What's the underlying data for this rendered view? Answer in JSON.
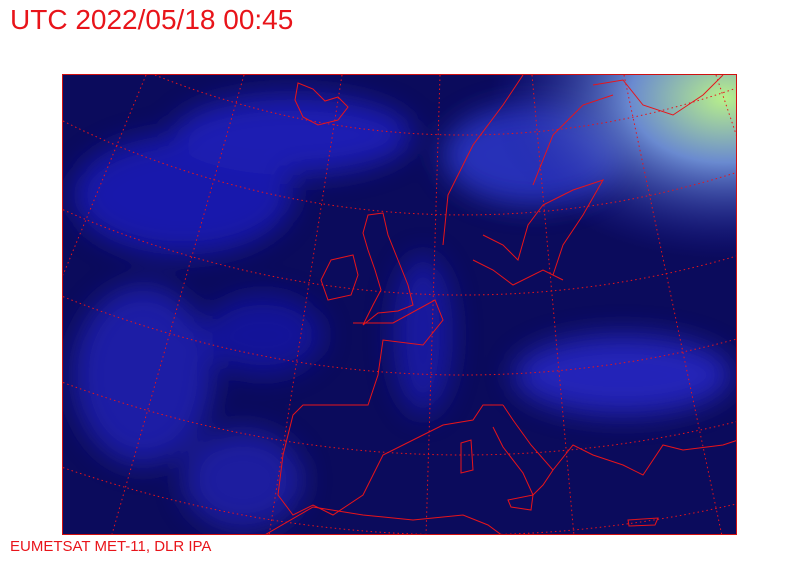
{
  "title": "UTC 2022/05/18 00:45",
  "credit": "EUMETSAT MET-11, DLR IPA",
  "map": {
    "type": "satellite composite",
    "region": "Europe",
    "overlay_color": "#e8141a",
    "graticule": "dotted",
    "background_color": "#0a0a5a"
  }
}
